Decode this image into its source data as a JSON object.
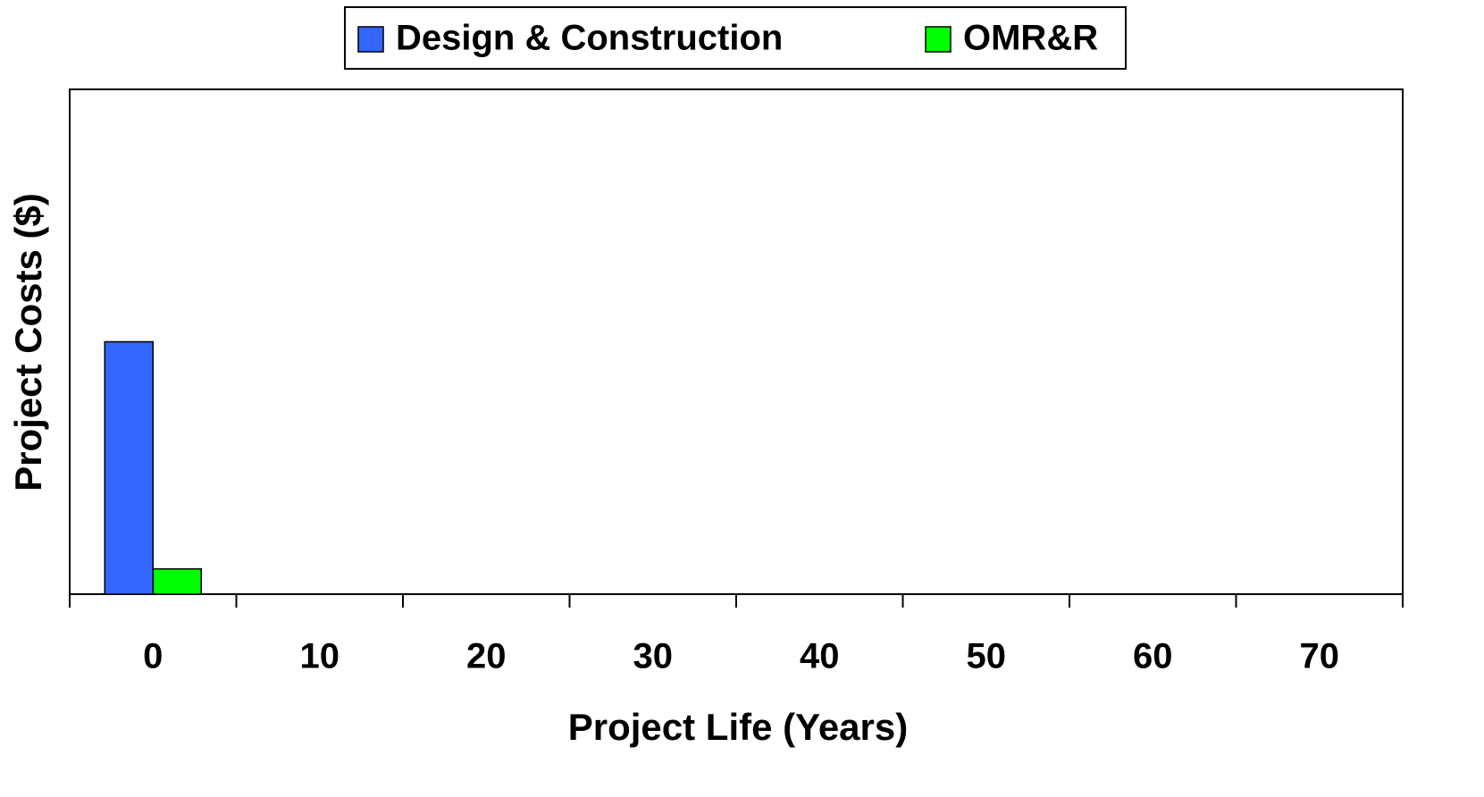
{
  "chart_data": {
    "type": "bar",
    "xlabel": "Project Life (Years)",
    "ylabel": "Project Costs ($)",
    "categories": [
      "0",
      "10",
      "20",
      "30",
      "40",
      "50",
      "60",
      "70"
    ],
    "series": [
      {
        "name": "Design & Construction",
        "color": "#3366ff",
        "values": [
          50,
          0,
          0,
          0,
          0,
          0,
          0,
          0
        ]
      },
      {
        "name": "OMR&R",
        "color": "#00ff00",
        "values": [
          5,
          0,
          0,
          0,
          0,
          0,
          0,
          0
        ]
      }
    ],
    "ylim": [
      0,
      100
    ],
    "legend": "top"
  }
}
